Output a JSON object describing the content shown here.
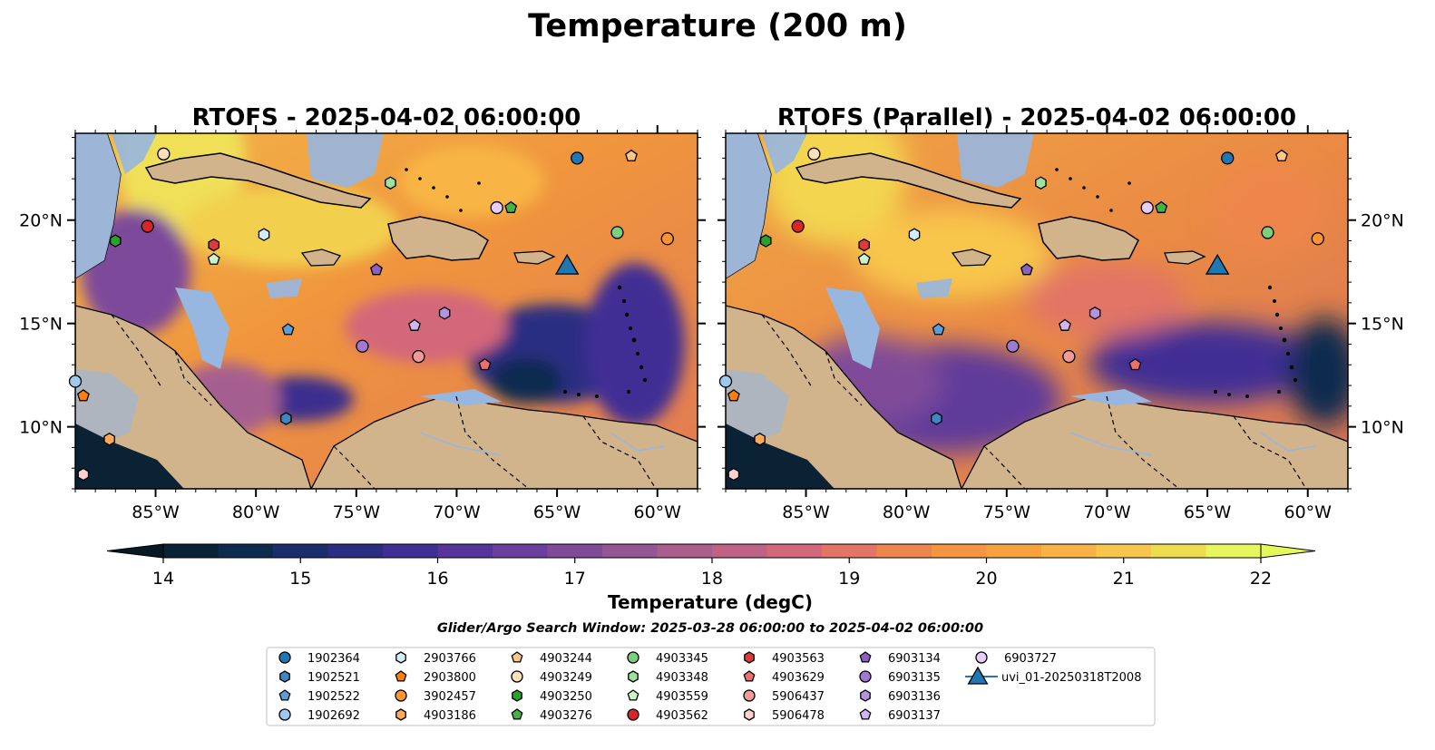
{
  "figure_title": "Temperature (200 m)",
  "panels": [
    {
      "title": "RTOFS - 2025-04-02 06:00:00"
    },
    {
      "title": "RTOFS (Parallel) - 2025-04-02 06:00:00"
    }
  ],
  "colorbar": {
    "label": "Temperature (degC)",
    "ticks": [
      "14",
      "15",
      "16",
      "17",
      "18",
      "19",
      "20",
      "21",
      "22"
    ],
    "min": 14,
    "max": 22,
    "extend": "both",
    "colors": [
      "#0a2234",
      "#0d2a4f",
      "#1b2d6a",
      "#2a2d82",
      "#3f2e94",
      "#57349b",
      "#6b3f9d",
      "#7f4b99",
      "#955693",
      "#a95e8d",
      "#bf6283",
      "#d3687a",
      "#e27566",
      "#ee864c",
      "#f5953f",
      "#f8a23f",
      "#f9b244",
      "#f8c64b",
      "#efdb4e",
      "#e7f65c"
    ]
  },
  "search_window": "Glider/Argo Search Window: 2025-03-28 06:00:00 to 2025-04-02 06:00:00",
  "colors": {
    "land": "#d2b48c",
    "shelf": "#97b6e0",
    "glider": "#1f77b4"
  },
  "legend": [
    {
      "label": "1902364",
      "marker": "circle",
      "color": "#1f77b4"
    },
    {
      "label": "1902521",
      "marker": "hexagon",
      "color": "#3f86c2"
    },
    {
      "label": "1902522",
      "marker": "pentagon",
      "color": "#5b9fd6"
    },
    {
      "label": "1902692",
      "marker": "circle",
      "color": "#9dc9ee"
    },
    {
      "label": "2903766",
      "marker": "hexagon",
      "color": "#d4ebfb"
    },
    {
      "label": "2903800",
      "marker": "pentagon",
      "color": "#ff7f0e"
    },
    {
      "label": "3902457",
      "marker": "circle",
      "color": "#ff9430"
    },
    {
      "label": "4903186",
      "marker": "hexagon",
      "color": "#ffa95a"
    },
    {
      "label": "4903244",
      "marker": "pentagon",
      "color": "#ffc68a"
    },
    {
      "label": "4903249",
      "marker": "circle",
      "color": "#ffe0bd"
    },
    {
      "label": "4903250",
      "marker": "hexagon",
      "color": "#2ca02c"
    },
    {
      "label": "4903276",
      "marker": "pentagon",
      "color": "#44b244"
    },
    {
      "label": "4903345",
      "marker": "circle",
      "color": "#7bd07b"
    },
    {
      "label": "4903348",
      "marker": "hexagon",
      "color": "#9ee29e"
    },
    {
      "label": "4903559",
      "marker": "pentagon",
      "color": "#c9f3c9"
    },
    {
      "label": "4903562",
      "marker": "circle",
      "color": "#d62728"
    },
    {
      "label": "4903563",
      "marker": "hexagon",
      "color": "#dd3a3c"
    },
    {
      "label": "4903629",
      "marker": "pentagon",
      "color": "#ec6e6f"
    },
    {
      "label": "5906437",
      "marker": "circle",
      "color": "#f09a9a"
    },
    {
      "label": "5906478",
      "marker": "hexagon",
      "color": "#fbd0d0"
    },
    {
      "label": "6903134",
      "marker": "pentagon",
      "color": "#8d5fc0"
    },
    {
      "label": "6903135",
      "marker": "circle",
      "color": "#a07ad0"
    },
    {
      "label": "6903136",
      "marker": "hexagon",
      "color": "#b593df"
    },
    {
      "label": "6903137",
      "marker": "pentagon",
      "color": "#d2b6f0"
    },
    {
      "label": "6903727",
      "marker": "circle",
      "color": "#e6cdfb"
    },
    {
      "label": "uvi_01-20250318T2008",
      "marker": "triangle",
      "color": "#1f77b4"
    }
  ],
  "chart_data": {
    "type": "scatter",
    "map_extent": {
      "lon": [
        -89,
        -58
      ],
      "lat": [
        7,
        24.2
      ]
    },
    "x_ticks": [
      {
        "lon": -85,
        "label": "85°W"
      },
      {
        "lon": -80,
        "label": "80°W"
      },
      {
        "lon": -75,
        "label": "75°W"
      },
      {
        "lon": -70,
        "label": "70°W"
      },
      {
        "lon": -65,
        "label": "65°W"
      },
      {
        "lon": -60,
        "label": "60°W"
      }
    ],
    "y_ticks": [
      {
        "lat": 10,
        "label": "10°N"
      },
      {
        "lat": 15,
        "label": "15°N"
      },
      {
        "lat": 20,
        "label": "20°N"
      }
    ],
    "points": [
      {
        "id": "1902364",
        "lon": -64.0,
        "lat": 23.0
      },
      {
        "id": "1902521",
        "lon": -78.5,
        "lat": 10.4
      },
      {
        "id": "1902522",
        "lon": -78.4,
        "lat": 14.7
      },
      {
        "id": "1902692",
        "lon": -89.0,
        "lat": 12.2
      },
      {
        "id": "2903766",
        "lon": -79.6,
        "lat": 19.3
      },
      {
        "id": "2903800",
        "lon": -88.6,
        "lat": 11.5
      },
      {
        "id": "3902457",
        "lon": -59.5,
        "lat": 19.1
      },
      {
        "id": "4903186",
        "lon": -87.3,
        "lat": 9.4
      },
      {
        "id": "4903244",
        "lon": -61.3,
        "lat": 23.1
      },
      {
        "id": "4903249",
        "lon": -84.6,
        "lat": 23.2
      },
      {
        "id": "4903250",
        "lon": -87.0,
        "lat": 19.0
      },
      {
        "id": "4903276",
        "lon": -67.3,
        "lat": 20.6
      },
      {
        "id": "4903345",
        "lon": -62.0,
        "lat": 19.4
      },
      {
        "id": "4903348",
        "lon": -73.3,
        "lat": 21.8
      },
      {
        "id": "4903559",
        "lon": -82.1,
        "lat": 18.1
      },
      {
        "id": "4903562",
        "lon": -85.4,
        "lat": 19.7
      },
      {
        "id": "4903563",
        "lon": -82.1,
        "lat": 18.8
      },
      {
        "id": "4903629",
        "lon": -68.6,
        "lat": 13.0
      },
      {
        "id": "5906437",
        "lon": -71.9,
        "lat": 13.4
      },
      {
        "id": "5906478",
        "lon": -88.6,
        "lat": 7.7
      },
      {
        "id": "6903134",
        "lon": -74.0,
        "lat": 17.6
      },
      {
        "id": "6903135",
        "lon": -74.7,
        "lat": 13.9
      },
      {
        "id": "6903136",
        "lon": -70.6,
        "lat": 15.5
      },
      {
        "id": "6903137",
        "lon": -72.1,
        "lat": 14.9
      },
      {
        "id": "6903727",
        "lon": -68.0,
        "lat": 20.6
      },
      {
        "id": "uvi_01-20250318T2008",
        "lon": -64.5,
        "lat": 17.7
      }
    ]
  }
}
